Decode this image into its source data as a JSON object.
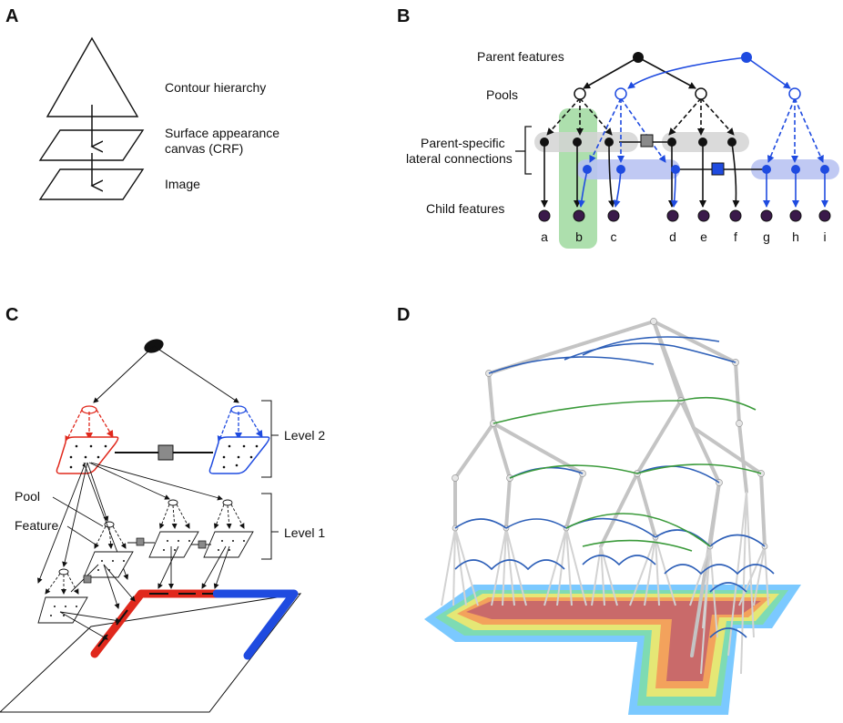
{
  "panels": {
    "a": {
      "letter": "A",
      "labels": [
        "Contour hierarchy",
        "Surface appearance",
        "canvas (CRF)",
        "Image"
      ]
    },
    "b": {
      "letter": "B",
      "labels": [
        "Parent features",
        "Pools",
        "Parent-specific",
        "lateral connections",
        "Child features"
      ],
      "leaves": [
        "a",
        "b",
        "c",
        "d",
        "e",
        "f",
        "g",
        "h",
        "i"
      ]
    },
    "c": {
      "letter": "C",
      "labels": [
        "Level 2",
        "Level 1",
        "Pool",
        "Feature"
      ]
    },
    "d": {
      "letter": "D"
    }
  },
  "colors": {
    "red": "#e0281c",
    "blue": "#1f4be0",
    "green_band": "#9fd99f",
    "blue_band": "#b9c3f2",
    "gray_band": "#d4d4d4",
    "child_fill": "#3a1a4a",
    "factor_gray": "#8a8a8a"
  }
}
